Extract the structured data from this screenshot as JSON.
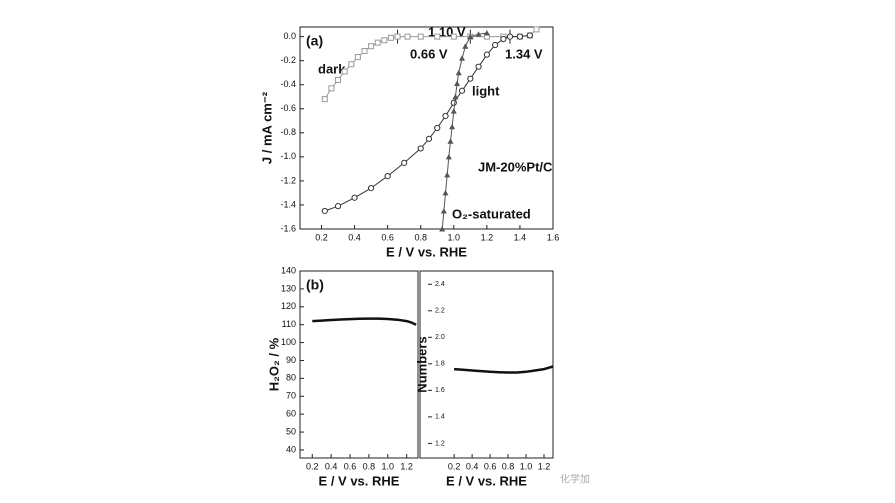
{
  "chart_data": [
    {
      "type": "line",
      "panel_label": "(a)",
      "x_label": "E / V vs. RHE",
      "y_label": "J / mA cm⁻²",
      "xlim": [
        0.07,
        1.6
      ],
      "ylim": [
        -1.6,
        0.08
      ],
      "xticks": [
        0.2,
        0.4,
        0.6,
        0.8,
        {
          "value": 1,
          "label": "1.0"
        },
        1.2,
        1.4,
        1.6
      ],
      "yticks": [
        {
          "value": 0,
          "label": "0.0"
        },
        -0.2,
        -0.4,
        -0.6,
        -0.8,
        {
          "value": -1,
          "label": "-1.0"
        },
        -1.2,
        -1.4,
        -1.6
      ],
      "annotations": [
        "dark",
        "0.66 V",
        "1.10 V",
        "1.34 V",
        "light",
        "JM-20%Pt/C",
        "O₂-saturated"
      ],
      "series": [
        {
          "name": "dark",
          "color": "#999999",
          "marker": "square",
          "x": [
            0.22,
            0.26,
            0.3,
            0.34,
            0.38,
            0.42,
            0.46,
            0.5,
            0.54,
            0.58,
            0.62,
            0.66,
            0.72,
            0.8,
            0.9,
            1.0,
            1.1,
            1.2,
            1.3,
            1.4,
            1.46,
            1.5
          ],
          "values": [
            -0.52,
            -0.43,
            -0.36,
            -0.29,
            -0.23,
            -0.17,
            -0.12,
            -0.08,
            -0.05,
            -0.03,
            -0.01,
            0,
            0,
            0,
            0,
            0,
            0,
            0,
            0,
            0,
            0.01,
            0.06
          ]
        },
        {
          "name": "light",
          "color": "#333333",
          "marker": "circle",
          "x": [
            0.22,
            0.3,
            0.4,
            0.5,
            0.6,
            0.7,
            0.8,
            0.85,
            0.9,
            0.95,
            1.0,
            1.05,
            1.1,
            1.15,
            1.2,
            1.25,
            1.3,
            1.34,
            1.4,
            1.46
          ],
          "values": [
            -1.45,
            -1.41,
            -1.34,
            -1.26,
            -1.16,
            -1.05,
            -0.93,
            -0.85,
            -0.76,
            -0.66,
            -0.55,
            -0.45,
            -0.35,
            -0.25,
            -0.15,
            -0.07,
            -0.02,
            0,
            0,
            0.01
          ]
        },
        {
          "name": "JM-20%Pt/C",
          "color": "#555555",
          "marker": "triangle",
          "x": [
            0.93,
            0.94,
            0.95,
            0.96,
            0.97,
            0.98,
            0.99,
            1.0,
            1.01,
            1.02,
            1.03,
            1.05,
            1.07,
            1.1,
            1.15,
            1.2
          ],
          "values": [
            -1.6,
            -1.45,
            -1.3,
            -1.15,
            -1.0,
            -0.87,
            -0.75,
            -0.62,
            -0.5,
            -0.39,
            -0.3,
            -0.18,
            -0.08,
            0,
            0.02,
            0.03
          ]
        }
      ]
    },
    {
      "type": "line",
      "panel_label": "(b)",
      "x_label": "E / V vs. RHE",
      "y_label": "H₂O₂ / %",
      "xlim": [
        0.07,
        1.32
      ],
      "ylim": [
        35.5,
        140
      ],
      "xticks": [
        0.2,
        0.4,
        0.6,
        0.8,
        {
          "value": 1,
          "label": "1.0"
        },
        1.2
      ],
      "yticks": [
        40,
        50,
        60,
        70,
        80,
        90,
        100,
        110,
        120,
        130,
        140
      ],
      "series": [
        {
          "name": "H₂O₂",
          "color": "#111111",
          "x": [
            0.2,
            0.3,
            0.4,
            0.5,
            0.6,
            0.7,
            0.8,
            0.9,
            1.0,
            1.1,
            1.2,
            1.25,
            1.3
          ],
          "values": [
            112,
            112.3,
            112.6,
            112.9,
            113.1,
            113.3,
            113.4,
            113.4,
            113.2,
            112.8,
            112,
            111.2,
            110
          ]
        }
      ]
    },
    {
      "type": "line",
      "x_label": "E / V vs. RHE",
      "y_label": "Numbers",
      "xlim": [
        -0.18,
        1.3
      ],
      "ylim": [
        1.09,
        2.5
      ],
      "xticks": [
        0.2,
        0.4,
        0.6,
        0.8,
        {
          "value": 1,
          "label": "1.0"
        },
        1.2
      ],
      "yticks": [
        1.2,
        1.4,
        1.6,
        1.8,
        {
          "value": 2,
          "label": "2.0"
        },
        2.2,
        2.4
      ],
      "series": [
        {
          "name": "Numbers",
          "color": "#111111",
          "x": [
            0.2,
            0.3,
            0.4,
            0.5,
            0.6,
            0.7,
            0.8,
            0.9,
            1.0,
            1.1,
            1.2,
            1.25,
            1.3
          ],
          "values": [
            1.76,
            1.755,
            1.75,
            1.745,
            1.74,
            1.737,
            1.735,
            1.735,
            1.74,
            1.75,
            1.76,
            1.77,
            1.78
          ]
        }
      ]
    }
  ],
  "watermark": "化学加"
}
